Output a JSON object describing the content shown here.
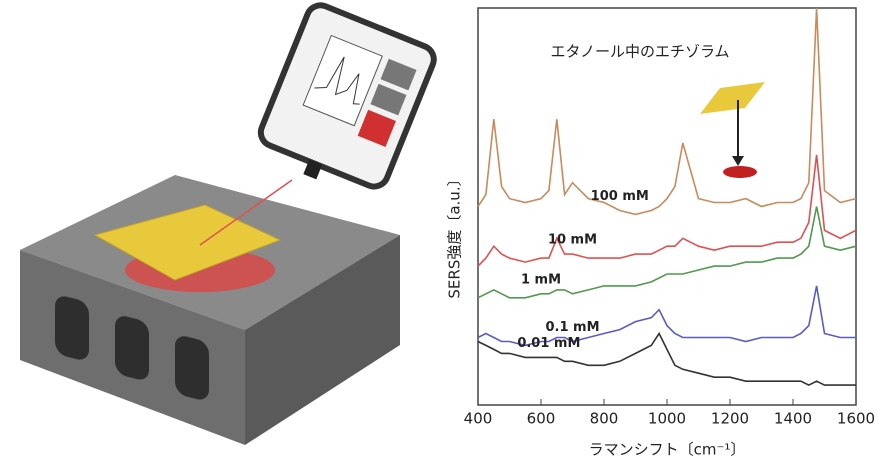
{
  "chart_data": {
    "type": "line",
    "title": "エタノール中のエチゾラム",
    "x_label": "ラマンシフト〔cm⁻¹〕",
    "y_label": "SERS強度〔a.u.〕",
    "x": [
      400,
      425,
      450,
      475,
      500,
      550,
      600,
      625,
      650,
      675,
      700,
      750,
      800,
      850,
      900,
      950,
      975,
      1000,
      1025,
      1050,
      1100,
      1150,
      1200,
      1250,
      1300,
      1350,
      1400,
      1425,
      1450,
      1475,
      1500,
      1550,
      1600
    ],
    "series": [
      {
        "name": "100 mM",
        "color": "#c98a5c",
        "values": [
          50,
          53,
          72,
          55,
          52,
          51,
          52,
          54,
          72,
          53,
          56,
          52,
          51,
          49,
          48,
          49,
          50,
          52,
          55,
          66,
          52,
          51,
          51,
          52,
          50,
          51,
          51,
          52,
          56,
          100,
          54,
          51,
          52
        ]
      },
      {
        "name": "10 mM",
        "color": "#e05050",
        "values": [
          35,
          37,
          40,
          38,
          37,
          36,
          37,
          37,
          42,
          38,
          38,
          37,
          37,
          37,
          38,
          38,
          39,
          40,
          40,
          42,
          40,
          39,
          40,
          40,
          40,
          41,
          41,
          42,
          46,
          63,
          44,
          42,
          44
        ]
      },
      {
        "name": "1 mM",
        "color": "#4f9a4f",
        "values": [
          27,
          28,
          29,
          28,
          27,
          27,
          28,
          28,
          29,
          29,
          28,
          29,
          30,
          30,
          30,
          31,
          32,
          33,
          33,
          33,
          34,
          35,
          35,
          36,
          36,
          37,
          37,
          38,
          40,
          50,
          40,
          39,
          40
        ]
      },
      {
        "name": "0.1 mM",
        "color": "#5a5ac8",
        "values": [
          17,
          18,
          17,
          16,
          16,
          15,
          16,
          16,
          17,
          17,
          16,
          17,
          18,
          19,
          21,
          22,
          24,
          20,
          18,
          17,
          17,
          17,
          17,
          16,
          17,
          17,
          17,
          18,
          20,
          30,
          18,
          17,
          17
        ]
      },
      {
        "name": "0.01 mM",
        "color": "#333333",
        "values": [
          16,
          15,
          14,
          13,
          13,
          12,
          12,
          12,
          12,
          11,
          11,
          10,
          10,
          11,
          13,
          15,
          18,
          14,
          10,
          9,
          8,
          7,
          7,
          6,
          6,
          6,
          6,
          6,
          5,
          6,
          5,
          5,
          5
        ]
      }
    ],
    "xlim": [
      400,
      1600
    ],
    "xticks": [
      400,
      600,
      800,
      1000,
      1200,
      1400,
      1600
    ],
    "ylim": [
      0,
      100
    ]
  }
}
